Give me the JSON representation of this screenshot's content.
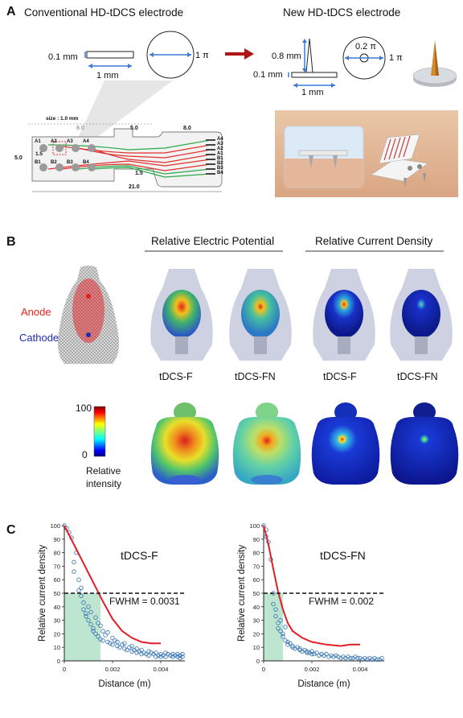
{
  "panelA": {
    "letter": "A",
    "left_title": "Conventional HD-tDCS electrode",
    "right_title": "New HD-tDCS electrode",
    "conv_thickness": "0.1 mm",
    "conv_width": "1 mm",
    "conv_area": "1 π",
    "new_height": "0.8 mm",
    "new_thickness": "0.1 mm",
    "new_width": "1 mm",
    "new_tip_area": "0.2 π",
    "new_area": "1 π",
    "board": {
      "size_label": "size : 1.0 mm",
      "dim_top_1": "8.0",
      "dim_top_2": "5.0",
      "dim_top_3": "8.0",
      "dim_left": "5.0",
      "dim_pitch": "1.5",
      "dim_mid": "1.5",
      "dim_bottom": "21.0",
      "pads_top": [
        "A1",
        "A2",
        "A3",
        "A4"
      ],
      "pads_bottom": [
        "B1",
        "B2",
        "B3",
        "B4"
      ],
      "pads_right": [
        "A4",
        "A3",
        "A2",
        "A1",
        "B1",
        "B2",
        "B3",
        "B4"
      ]
    }
  },
  "panelB": {
    "letter": "B",
    "col_group_1": "Relative Electric Potential",
    "col_group_2": "Relative Current Density",
    "anode": "Anode",
    "cathode": "Cathode",
    "labels": [
      "tDCS-F",
      "tDCS-FN",
      "tDCS-F",
      "tDCS-FN"
    ],
    "colorbar_max": "100",
    "colorbar_min": "0",
    "colorbar_title_1": "Relative",
    "colorbar_title_2": "intensity",
    "colors": {
      "anode": "#e8231f",
      "cathode": "#1f2bb5"
    }
  },
  "panelC": {
    "letter": "C",
    "chart_data": [
      {
        "type": "scatter",
        "title": "tDCS-F",
        "xlabel": "Distance (m)",
        "ylabel": "Relative current density",
        "xlim": [
          0,
          0.005
        ],
        "ylim": [
          0,
          100
        ],
        "xticks": [
          "0",
          "0.002",
          "0.004"
        ],
        "yticks": [
          "0",
          "10",
          "20",
          "30",
          "40",
          "50",
          "60",
          "70",
          "80",
          "90",
          "100"
        ],
        "annotation": "FWHM = 0.0031",
        "threshold": 50,
        "fwhm_x": 0.0015,
        "fit_curve": [
          [
            0.0,
            100
          ],
          [
            0.0004,
            86
          ],
          [
            0.0008,
            72
          ],
          [
            0.0012,
            58
          ],
          [
            0.0016,
            44
          ],
          [
            0.002,
            31
          ],
          [
            0.0024,
            22
          ],
          [
            0.0028,
            17
          ],
          [
            0.0032,
            14
          ],
          [
            0.0036,
            13
          ],
          [
            0.004,
            13
          ]
        ],
        "points": [
          [
            0.0,
            100
          ],
          [
            0.0001,
            98
          ],
          [
            0.0002,
            95
          ],
          [
            0.0003,
            91
          ],
          [
            0.0004,
            73
          ],
          [
            0.0004,
            66
          ],
          [
            0.0005,
            80
          ],
          [
            0.0006,
            60
          ],
          [
            0.0006,
            52
          ],
          [
            0.0007,
            54
          ],
          [
            0.0007,
            48
          ],
          [
            0.0008,
            43
          ],
          [
            0.0008,
            38
          ],
          [
            0.0009,
            35
          ],
          [
            0.0009,
            33
          ],
          [
            0.001,
            40
          ],
          [
            0.001,
            30
          ],
          [
            0.0011,
            36
          ],
          [
            0.0011,
            27
          ],
          [
            0.0012,
            24
          ],
          [
            0.0012,
            22
          ],
          [
            0.0013,
            32
          ],
          [
            0.0013,
            20
          ],
          [
            0.0014,
            28
          ],
          [
            0.0014,
            18
          ],
          [
            0.0015,
            26
          ],
          [
            0.0015,
            16
          ],
          [
            0.0016,
            22
          ],
          [
            0.0016,
            15
          ],
          [
            0.0017,
            19
          ],
          [
            0.0018,
            14
          ],
          [
            0.0018,
            21
          ],
          [
            0.0019,
            13
          ],
          [
            0.002,
            17
          ],
          [
            0.002,
            12
          ],
          [
            0.0021,
            15
          ],
          [
            0.0022,
            11
          ],
          [
            0.0022,
            14
          ],
          [
            0.0023,
            10
          ],
          [
            0.0024,
            12
          ],
          [
            0.0025,
            9
          ],
          [
            0.0025,
            13
          ],
          [
            0.0026,
            8
          ],
          [
            0.0027,
            10
          ],
          [
            0.0028,
            7
          ],
          [
            0.0028,
            11
          ],
          [
            0.0029,
            8
          ],
          [
            0.003,
            6
          ],
          [
            0.003,
            9
          ],
          [
            0.0031,
            7
          ],
          [
            0.0032,
            5
          ],
          [
            0.0032,
            8
          ],
          [
            0.0033,
            6
          ],
          [
            0.0034,
            5
          ],
          [
            0.0035,
            7
          ],
          [
            0.0035,
            4
          ],
          [
            0.0036,
            6
          ],
          [
            0.0037,
            5
          ],
          [
            0.0038,
            3
          ],
          [
            0.0038,
            6
          ],
          [
            0.0039,
            4
          ],
          [
            0.004,
            5
          ],
          [
            0.004,
            3
          ],
          [
            0.0041,
            4
          ],
          [
            0.0042,
            6
          ],
          [
            0.0042,
            3
          ],
          [
            0.0043,
            5
          ],
          [
            0.0044,
            4
          ],
          [
            0.0045,
            3
          ],
          [
            0.0045,
            5
          ],
          [
            0.0046,
            4
          ],
          [
            0.0047,
            3
          ],
          [
            0.0047,
            5
          ],
          [
            0.0048,
            2
          ],
          [
            0.0048,
            4
          ],
          [
            0.0049,
            3
          ],
          [
            0.0049,
            5
          ]
        ],
        "colors": {
          "points": "#2e6fb0",
          "fit": "#e11f26",
          "fill": "#a8dcc0"
        }
      },
      {
        "type": "scatter",
        "title": "tDCS-FN",
        "xlabel": "Distance (m)",
        "ylabel": "Relative current density",
        "xlim": [
          0,
          0.005
        ],
        "ylim": [
          0,
          100
        ],
        "xticks": [
          "0",
          "0.002",
          "0.004"
        ],
        "yticks": [
          "0",
          "10",
          "20",
          "30",
          "40",
          "50",
          "60",
          "70",
          "80",
          "90",
          "100"
        ],
        "annotation": "FWHM = 0.002",
        "threshold": 50,
        "fwhm_x": 0.0008,
        "fit_curve": [
          [
            0.0,
            100
          ],
          [
            0.0002,
            86
          ],
          [
            0.0004,
            68
          ],
          [
            0.0006,
            51
          ],
          [
            0.0008,
            38
          ],
          [
            0.001,
            28
          ],
          [
            0.0012,
            22
          ],
          [
            0.0016,
            17
          ],
          [
            0.002,
            14
          ],
          [
            0.0026,
            12
          ],
          [
            0.0032,
            11
          ],
          [
            0.0036,
            12
          ],
          [
            0.004,
            12
          ]
        ],
        "points": [
          [
            0.0,
            100
          ],
          [
            0.0001,
            97
          ],
          [
            0.0001,
            92
          ],
          [
            0.0002,
            88
          ],
          [
            0.0003,
            75
          ],
          [
            0.0004,
            50
          ],
          [
            0.0004,
            42
          ],
          [
            0.0005,
            38
          ],
          [
            0.0005,
            33
          ],
          [
            0.0006,
            28
          ],
          [
            0.0006,
            24
          ],
          [
            0.0007,
            22
          ],
          [
            0.0007,
            30
          ],
          [
            0.0008,
            20
          ],
          [
            0.0008,
            18
          ],
          [
            0.0009,
            15
          ],
          [
            0.0009,
            25
          ],
          [
            0.001,
            14
          ],
          [
            0.001,
            12
          ],
          [
            0.0011,
            13
          ],
          [
            0.0012,
            10
          ],
          [
            0.0012,
            11
          ],
          [
            0.0013,
            9
          ],
          [
            0.0014,
            10
          ],
          [
            0.0015,
            8
          ],
          [
            0.0015,
            9
          ],
          [
            0.0016,
            7
          ],
          [
            0.0017,
            8
          ],
          [
            0.0018,
            6
          ],
          [
            0.0018,
            7
          ],
          [
            0.0019,
            6
          ],
          [
            0.002,
            5
          ],
          [
            0.002,
            7
          ],
          [
            0.0021,
            5
          ],
          [
            0.0022,
            6
          ],
          [
            0.0023,
            4
          ],
          [
            0.0024,
            5
          ],
          [
            0.0025,
            4
          ],
          [
            0.0026,
            5
          ],
          [
            0.0027,
            3
          ],
          [
            0.0028,
            4
          ],
          [
            0.0029,
            3
          ],
          [
            0.003,
            4
          ],
          [
            0.0031,
            3
          ],
          [
            0.0032,
            2
          ],
          [
            0.0033,
            3
          ],
          [
            0.0034,
            2
          ],
          [
            0.0035,
            3
          ],
          [
            0.0036,
            2
          ],
          [
            0.0037,
            2
          ],
          [
            0.0038,
            3
          ],
          [
            0.0039,
            2
          ],
          [
            0.004,
            2
          ],
          [
            0.0041,
            1
          ],
          [
            0.0042,
            2
          ],
          [
            0.0043,
            1
          ],
          [
            0.0044,
            2
          ],
          [
            0.0045,
            1
          ],
          [
            0.0046,
            2
          ],
          [
            0.0047,
            1
          ],
          [
            0.0048,
            1
          ],
          [
            0.0049,
            2
          ]
        ],
        "colors": {
          "points": "#2e6fb0",
          "fit": "#e11f26",
          "fill": "#a8dcc0"
        }
      }
    ]
  }
}
